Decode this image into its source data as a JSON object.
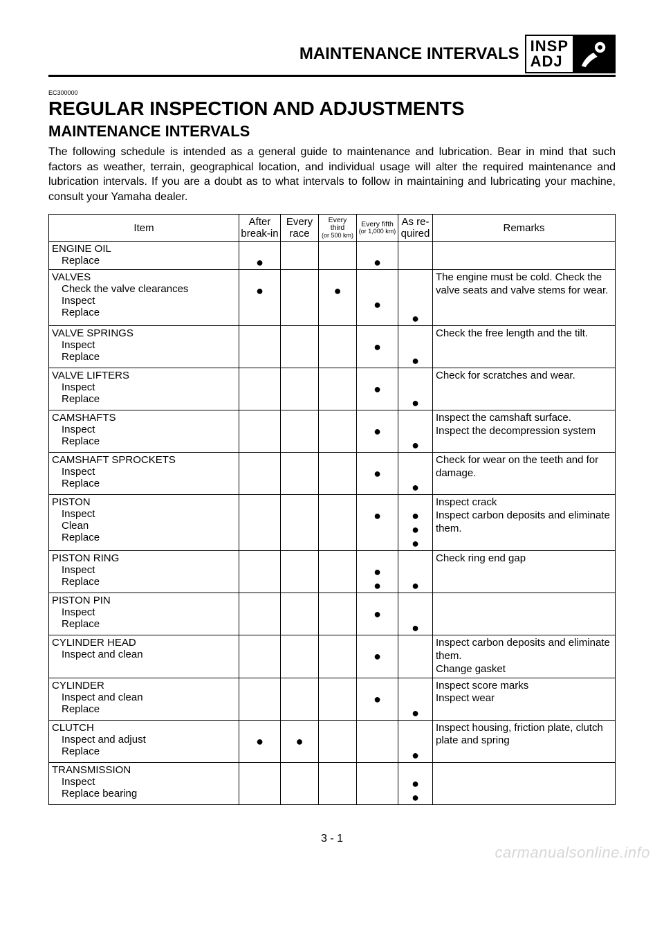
{
  "header": {
    "title": "MAINTENANCE INTERVALS",
    "badge_top": "INSP",
    "badge_bottom": "ADJ"
  },
  "meta": {
    "code": "EC300000",
    "h1": "REGULAR INSPECTION AND ADJUSTMENTS",
    "h2": "MAINTENANCE INTERVALS",
    "intro": "The following schedule is intended as a general guide to maintenance and lubrication. Bear in mind that such factors as weather, terrain, geographical location, and individual usage will alter the required maintenance and lubrication intervals. If you are a doubt as to what intervals to follow in maintaining and lubricating your machine, consult your Yamaha dealer."
  },
  "columns": {
    "item": "Item",
    "break": "After break-in",
    "race": "Every race",
    "third_a": "Every third",
    "third_b": "(or 500 km)",
    "fifth_a": "Every fifth",
    "fifth_b": "(or 1,000 km)",
    "req": "As re-quired",
    "remarks": "Remarks"
  },
  "rows": [
    {
      "title": "ENGINE OIL",
      "subs": [
        "Replace"
      ],
      "marks": {
        "break": [
          1
        ],
        "race": [],
        "third": [],
        "fifth": [
          1
        ],
        "req": []
      },
      "remark": ""
    },
    {
      "title": "VALVES",
      "subs": [
        "Check the valve clearances",
        "Inspect",
        "Replace"
      ],
      "marks": {
        "break": [
          1
        ],
        "race": [],
        "third": [
          1
        ],
        "fifth": [
          2
        ],
        "req": [
          3
        ]
      },
      "remark": "The engine must be cold. Check the valve seats and valve stems for wear."
    },
    {
      "title": "VALVE SPRINGS",
      "subs": [
        "Inspect",
        "Replace"
      ],
      "marks": {
        "break": [],
        "race": [],
        "third": [],
        "fifth": [
          1
        ],
        "req": [
          2
        ]
      },
      "remark": "Check the free length and the tilt."
    },
    {
      "title": "VALVE LIFTERS",
      "subs": [
        "Inspect",
        "Replace"
      ],
      "marks": {
        "break": [],
        "race": [],
        "third": [],
        "fifth": [
          1
        ],
        "req": [
          2
        ]
      },
      "remark": "Check for scratches and wear."
    },
    {
      "title": "CAMSHAFTS",
      "subs": [
        "Inspect",
        "Replace"
      ],
      "marks": {
        "break": [],
        "race": [],
        "third": [],
        "fifth": [
          1
        ],
        "req": [
          2
        ]
      },
      "remark": "Inspect the camshaft surface.\nInspect the decompression system"
    },
    {
      "title": "CAMSHAFT SPROCKETS",
      "subs": [
        "Inspect",
        "Replace"
      ],
      "marks": {
        "break": [],
        "race": [],
        "third": [],
        "fifth": [
          1
        ],
        "req": [
          2
        ]
      },
      "remark": "Check for wear on the teeth and for damage."
    },
    {
      "title": "PISTON",
      "subs": [
        "Inspect",
        "Clean",
        "Replace"
      ],
      "marks": {
        "break": [],
        "race": [],
        "third": [],
        "fifth": [
          1
        ],
        "req": [
          1,
          2,
          3
        ]
      },
      "remark": "Inspect crack\nInspect carbon deposits and eliminate them."
    },
    {
      "title": "PISTON RING",
      "subs": [
        "Inspect",
        "Replace"
      ],
      "marks": {
        "break": [],
        "race": [],
        "third": [],
        "fifth": [
          1,
          2
        ],
        "req": [
          2
        ]
      },
      "remark": "Check ring end gap"
    },
    {
      "title": "PISTON PIN",
      "subs": [
        "Inspect",
        "Replace"
      ],
      "marks": {
        "break": [],
        "race": [],
        "third": [],
        "fifth": [
          1
        ],
        "req": [
          2
        ]
      },
      "remark": ""
    },
    {
      "title": "CYLINDER HEAD",
      "subs": [
        "Inspect and clean"
      ],
      "marks": {
        "break": [],
        "race": [],
        "third": [],
        "fifth": [
          1
        ],
        "req": []
      },
      "remark": "Inspect carbon deposits and eliminate them.\nChange gasket"
    },
    {
      "title": "CYLINDER",
      "subs": [
        "Inspect and clean",
        "Replace"
      ],
      "marks": {
        "break": [],
        "race": [],
        "third": [],
        "fifth": [
          1
        ],
        "req": [
          2
        ]
      },
      "remark": "Inspect score marks\nInspect wear"
    },
    {
      "title": "CLUTCH",
      "subs": [
        "Inspect and adjust",
        "Replace"
      ],
      "marks": {
        "break": [
          1
        ],
        "race": [
          1
        ],
        "third": [],
        "fifth": [],
        "req": [
          2
        ]
      },
      "remark": "Inspect housing, friction plate, clutch plate and spring"
    },
    {
      "title": "TRANSMISSION",
      "subs": [
        "Inspect",
        "Replace bearing"
      ],
      "marks": {
        "break": [],
        "race": [],
        "third": [],
        "fifth": [],
        "req": [
          1,
          2
        ]
      },
      "remark": ""
    }
  ],
  "footer": {
    "page": "3 - 1",
    "watermark": "carmanualsonline.info"
  },
  "style": {
    "dot_glyph": "●",
    "text_color": "#000000",
    "bg_color": "#ffffff",
    "watermark_color": "#d7d7d7"
  }
}
